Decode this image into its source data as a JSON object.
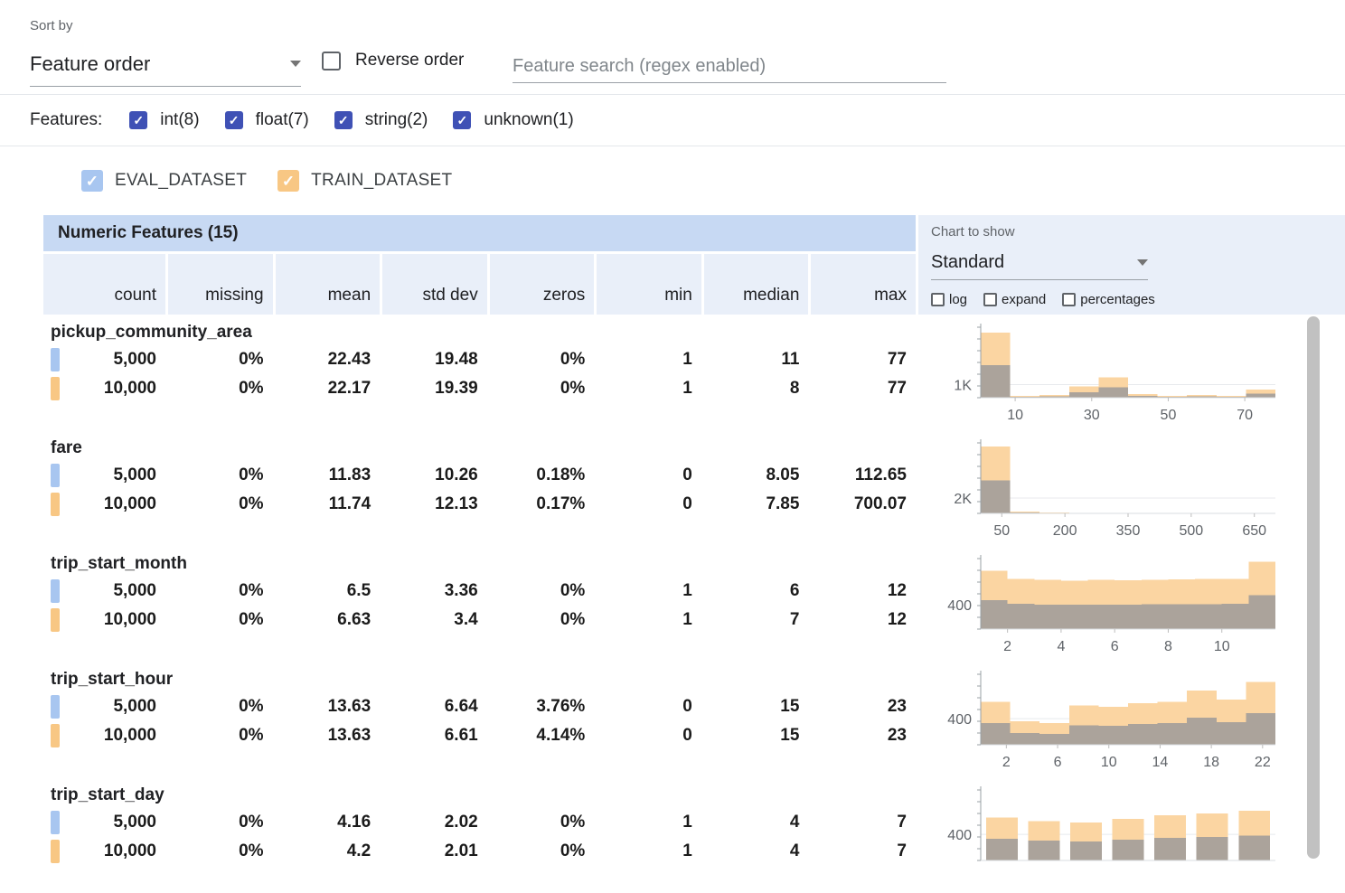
{
  "toolbar": {
    "sort_by_label": "Sort by",
    "sort_value": "Feature order",
    "reverse_label": "Reverse order",
    "reverse_checked": false,
    "search_placeholder": "Feature search (regex enabled)"
  },
  "filters": {
    "label": "Features:",
    "checkbox_color": "#3f51b5",
    "items": [
      {
        "label": "int(8)",
        "checked": true
      },
      {
        "label": "float(7)",
        "checked": true
      },
      {
        "label": "string(2)",
        "checked": true
      },
      {
        "label": "unknown(1)",
        "checked": true
      }
    ]
  },
  "legend": {
    "items": [
      {
        "label": "EVAL_DATASET",
        "color": "#a8c6f0",
        "checked": true
      },
      {
        "label": "TRAIN_DATASET",
        "color": "#f8c784",
        "checked": true
      }
    ]
  },
  "table": {
    "title": "Numeric Features (15)",
    "columns": [
      "count",
      "missing",
      "mean",
      "std dev",
      "zeros",
      "min",
      "median",
      "max"
    ],
    "features": [
      {
        "name": "pickup_community_area",
        "rows": [
          {
            "dataset": "EVAL_DATASET",
            "color": "#a8c6f0",
            "values": [
              "5,000",
              "0%",
              "22.43",
              "19.48",
              "0%",
              "1",
              "11",
              "77"
            ]
          },
          {
            "dataset": "TRAIN_DATASET",
            "color": "#f8c784",
            "values": [
              "10,000",
              "0%",
              "22.17",
              "19.39",
              "0%",
              "1",
              "8",
              "77"
            ]
          }
        ]
      },
      {
        "name": "fare",
        "rows": [
          {
            "dataset": "EVAL_DATASET",
            "color": "#a8c6f0",
            "values": [
              "5,000",
              "0%",
              "11.83",
              "10.26",
              "0.18%",
              "0",
              "8.05",
              "112.65"
            ]
          },
          {
            "dataset": "TRAIN_DATASET",
            "color": "#f8c784",
            "values": [
              "10,000",
              "0%",
              "11.74",
              "12.13",
              "0.17%",
              "0",
              "7.85",
              "700.07"
            ]
          }
        ]
      },
      {
        "name": "trip_start_month",
        "rows": [
          {
            "dataset": "EVAL_DATASET",
            "color": "#a8c6f0",
            "values": [
              "5,000",
              "0%",
              "6.5",
              "3.36",
              "0%",
              "1",
              "6",
              "12"
            ]
          },
          {
            "dataset": "TRAIN_DATASET",
            "color": "#f8c784",
            "values": [
              "10,000",
              "0%",
              "6.63",
              "3.4",
              "0%",
              "1",
              "7",
              "12"
            ]
          }
        ]
      },
      {
        "name": "trip_start_hour",
        "rows": [
          {
            "dataset": "EVAL_DATASET",
            "color": "#a8c6f0",
            "values": [
              "5,000",
              "0%",
              "13.63",
              "6.64",
              "3.76%",
              "0",
              "15",
              "23"
            ]
          },
          {
            "dataset": "TRAIN_DATASET",
            "color": "#f8c784",
            "values": [
              "10,000",
              "0%",
              "13.63",
              "6.61",
              "4.14%",
              "0",
              "15",
              "23"
            ]
          }
        ]
      },
      {
        "name": "trip_start_day",
        "rows": [
          {
            "dataset": "EVAL_DATASET",
            "color": "#a8c6f0",
            "values": [
              "5,000",
              "0%",
              "4.16",
              "2.02",
              "0%",
              "1",
              "4",
              "7"
            ]
          },
          {
            "dataset": "TRAIN_DATASET",
            "color": "#f8c784",
            "values": [
              "10,000",
              "0%",
              "4.2",
              "2.01",
              "0%",
              "1",
              "4",
              "7"
            ]
          }
        ]
      }
    ]
  },
  "chart_controls": {
    "label": "Chart to show",
    "selected": "Standard",
    "toggles": [
      {
        "label": "log",
        "checked": false
      },
      {
        "label": "expand",
        "checked": false
      },
      {
        "label": "percentages",
        "checked": false
      }
    ]
  },
  "colors": {
    "train_bar": "#fbd5a2",
    "eval_overlay": "rgba(98,116,149,0.52)",
    "header_bar": "#c7d9f3",
    "header_cell": "#e9eff9",
    "filter_checkbox": "#3f51b5"
  },
  "chart_data": [
    {
      "feature": "pickup_community_area",
      "type": "histogram",
      "y_axis_label": "1K",
      "y_gridline_value": 1000,
      "y_max": 5400,
      "x_min": 1,
      "x_max": 78,
      "x_ticks": [
        10,
        30,
        50,
        70
      ],
      "bar_gap": 0,
      "series": [
        {
          "name": "TRAIN_DATASET",
          "values": [
            5000,
            140,
            210,
            860,
            1570,
            290,
            140,
            210,
            140,
            640
          ]
        },
        {
          "name": "EVAL_DATASET",
          "values": [
            2500,
            70,
            105,
            430,
            785,
            145,
            70,
            105,
            70,
            320
          ]
        }
      ]
    },
    {
      "feature": "fare",
      "type": "histogram",
      "y_axis_label": "2K",
      "y_gridline_value": 2000,
      "y_max": 9200,
      "x_min": 0,
      "x_max": 700,
      "x_ticks": [
        50,
        200,
        350,
        500,
        650
      ],
      "bar_gap": 0,
      "series": [
        {
          "name": "TRAIN_DATASET",
          "values": [
            8700,
            260,
            90,
            45,
            28,
            18,
            12,
            9,
            6,
            8
          ]
        },
        {
          "name": "EVAL_DATASET",
          "values": [
            4300,
            130,
            45,
            22,
            14,
            9,
            6,
            4,
            3,
            4
          ]
        }
      ]
    },
    {
      "feature": "trip_start_month",
      "type": "histogram",
      "y_axis_label": "400",
      "y_gridline_value": 400,
      "y_max": 1150,
      "x_min": 1,
      "x_max": 12,
      "x_ticks": [
        2,
        4,
        6,
        8,
        10
      ],
      "bar_gap": 0,
      "series": [
        {
          "name": "TRAIN_DATASET",
          "values": [
            950,
            820,
            800,
            790,
            800,
            795,
            805,
            810,
            815,
            820,
            1100
          ]
        },
        {
          "name": "EVAL_DATASET",
          "values": [
            475,
            410,
            400,
            395,
            400,
            398,
            403,
            405,
            408,
            410,
            550
          ]
        }
      ]
    },
    {
      "feature": "trip_start_hour",
      "type": "histogram",
      "y_axis_label": "400",
      "y_gridline_value": 400,
      "y_max": 1080,
      "x_min": 0,
      "x_max": 23,
      "x_ticks": [
        2,
        6,
        10,
        14,
        18,
        22
      ],
      "bar_gap": 0,
      "series": [
        {
          "name": "TRAIN_DATASET",
          "values": [
            660,
            360,
            330,
            605,
            580,
            635,
            660,
            830,
            690,
            965
          ]
        },
        {
          "name": "EVAL_DATASET",
          "values": [
            330,
            180,
            165,
            300,
            290,
            318,
            330,
            415,
            345,
            483
          ]
        }
      ]
    },
    {
      "feature": "trip_start_day",
      "type": "histogram",
      "y_axis_label": "400",
      "y_gridline_value": 400,
      "y_max": 1080,
      "x_min": 0.5,
      "x_max": 7.5,
      "x_ticks": [],
      "bar_gap": 0.25,
      "series": [
        {
          "name": "TRAIN_DATASET",
          "values": [
            660,
            605,
            580,
            635,
            690,
            718,
            760
          ]
        },
        {
          "name": "EVAL_DATASET",
          "values": [
            330,
            303,
            290,
            318,
            345,
            359,
            380
          ]
        }
      ]
    }
  ]
}
